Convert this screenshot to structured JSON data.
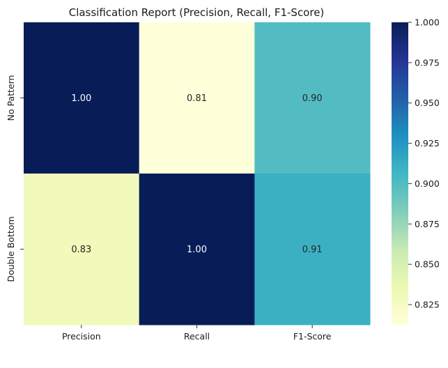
{
  "chart_data": {
    "type": "heatmap",
    "title": "Classification Report (Precision, Recall, F1-Score)",
    "xlabel": "",
    "ylabel": "",
    "x_categories": [
      "Precision",
      "Recall",
      "F1-Score"
    ],
    "y_categories": [
      "No Pattern",
      "Double Bottom"
    ],
    "values": [
      [
        1.0,
        0.81,
        0.9
      ],
      [
        0.83,
        1.0,
        0.91
      ]
    ],
    "value_labels": [
      [
        "1.00",
        "0.81",
        "0.90"
      ],
      [
        "0.83",
        "1.00",
        "0.91"
      ]
    ],
    "colormap": "YlGnBu",
    "colorbar": {
      "range": [
        0.8125,
        1.0
      ],
      "ticks": [
        0.825,
        0.85,
        0.875,
        0.9,
        0.925,
        0.95,
        0.975,
        1.0
      ],
      "tick_labels": [
        "0.825",
        "0.850",
        "0.875",
        "0.900",
        "0.925",
        "0.950",
        "0.975",
        "1.000"
      ]
    },
    "grid": false,
    "colors": {
      "stops": [
        "#ffffd9",
        "#edf8b1",
        "#c7e9b4",
        "#7fcdbb",
        "#41b6c4",
        "#1d91c0",
        "#225ea8",
        "#253494",
        "#081d58"
      ]
    }
  }
}
